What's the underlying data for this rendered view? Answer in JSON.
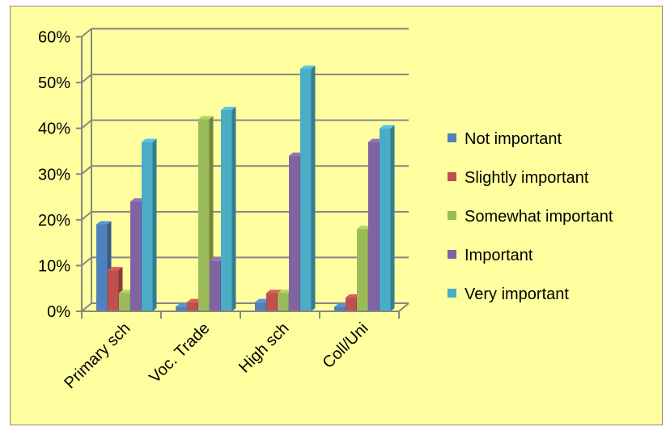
{
  "chart_data": {
    "type": "bar",
    "categories": [
      "Primary sch",
      "Voc. Trade",
      "High sch",
      "Coll/Uni"
    ],
    "series": [
      {
        "name": "Not important",
        "color": "#4f81bd",
        "values": [
          0.19,
          0.01,
          0.02,
          0.01
        ]
      },
      {
        "name": "Slightly important",
        "color": "#c0504d",
        "values": [
          0.09,
          0.02,
          0.04,
          0.03
        ]
      },
      {
        "name": "Somewhat important",
        "color": "#9bbb59",
        "values": [
          0.04,
          0.42,
          0.04,
          0.18
        ]
      },
      {
        "name": "Important",
        "color": "#8064a2",
        "values": [
          0.24,
          0.11,
          0.34,
          0.37
        ]
      },
      {
        "name": "Very important",
        "color": "#4bacc6",
        "values": [
          0.37,
          0.44,
          0.53,
          0.4
        ]
      }
    ],
    "ylim": [
      0,
      0.6
    ],
    "yticks": [
      "0%",
      "10%",
      "20%",
      "30%",
      "40%",
      "50%",
      "60%"
    ],
    "title": "",
    "xlabel": "",
    "ylabel": "",
    "grid": true,
    "legend_position": "right",
    "background_color": "#ffff9f"
  }
}
